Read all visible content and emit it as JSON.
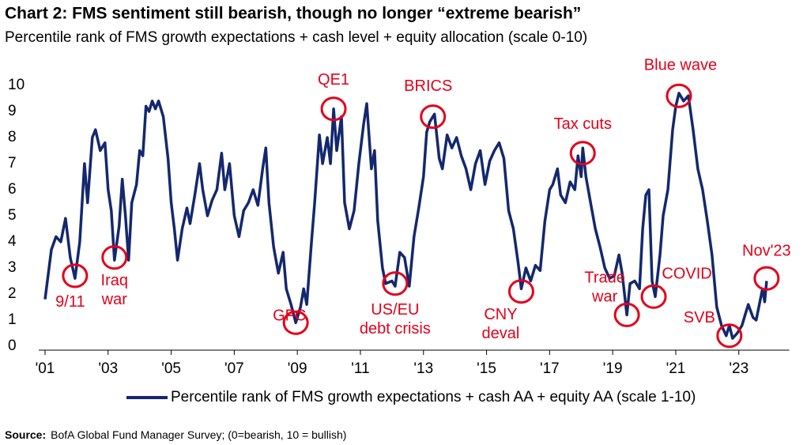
{
  "chart_data": {
    "type": "line",
    "title": "Chart 2: FMS sentiment still bearish, though no longer “extreme bearish”",
    "subtitle": "Percentile rank of FMS growth expectations + cash level + equity allocation (scale 0-10)",
    "source_label": "Source:",
    "source": "BofA Global Fund Manager Survey; (0=bearish, 10 = bullish)",
    "xlim": [
      2000.8,
      2024.6
    ],
    "xticks": [
      {
        "value": 2001,
        "label": "'01"
      },
      {
        "value": 2003,
        "label": "'03"
      },
      {
        "value": 2005,
        "label": "'05"
      },
      {
        "value": 2007,
        "label": "'07"
      },
      {
        "value": 2009,
        "label": "'09"
      },
      {
        "value": 2011,
        "label": "'11"
      },
      {
        "value": 2013,
        "label": "'13"
      },
      {
        "value": 2015,
        "label": "'15"
      },
      {
        "value": 2017,
        "label": "'17"
      },
      {
        "value": 2019,
        "label": "'19"
      },
      {
        "value": 2021,
        "label": "'21"
      },
      {
        "value": 2023,
        "label": "'23"
      }
    ],
    "ylim": [
      0,
      10
    ],
    "yticks": [
      0,
      1,
      2,
      3,
      4,
      5,
      6,
      7,
      8,
      9,
      10
    ],
    "grid": false,
    "legend": "bottom",
    "series": [
      {
        "name": "Percentile rank of FMS growth expectations + cash AA + equity AA (scale 1-10)",
        "color": "#14286e",
        "x": [
          2001.0,
          2001.2,
          2001.35,
          2001.5,
          2001.65,
          2001.8,
          2001.95,
          2002.1,
          2002.25,
          2002.35,
          2002.5,
          2002.6,
          2002.75,
          2002.9,
          2003.0,
          2003.1,
          2003.2,
          2003.35,
          2003.45,
          2003.55,
          2003.65,
          2003.75,
          2003.9,
          2004.0,
          2004.1,
          2004.2,
          2004.3,
          2004.4,
          2004.5,
          2004.6,
          2004.75,
          2004.9,
          2005.0,
          2005.1,
          2005.2,
          2005.35,
          2005.5,
          2005.6,
          2005.75,
          2005.9,
          2006.0,
          2006.15,
          2006.3,
          2006.45,
          2006.6,
          2006.7,
          2006.85,
          2007.0,
          2007.15,
          2007.3,
          2007.45,
          2007.6,
          2007.75,
          2007.9,
          2008.0,
          2008.1,
          2008.25,
          2008.4,
          2008.55,
          2008.65,
          2008.8,
          2008.95,
          2009.1,
          2009.2,
          2009.3,
          2009.45,
          2009.55,
          2009.7,
          2009.8,
          2009.95,
          2010.05,
          2010.15,
          2010.25,
          2010.4,
          2010.5,
          2010.65,
          2010.8,
          2010.95,
          2011.1,
          2011.2,
          2011.35,
          2011.45,
          2011.55,
          2011.7,
          2011.8,
          2012.0,
          2012.1,
          2012.25,
          2012.4,
          2012.55,
          2012.7,
          2012.85,
          2013.0,
          2013.1,
          2013.2,
          2013.35,
          2013.5,
          2013.6,
          2013.75,
          2013.9,
          2014.05,
          2014.2,
          2014.35,
          2014.5,
          2014.65,
          2014.8,
          2014.95,
          2015.1,
          2015.25,
          2015.4,
          2015.55,
          2015.7,
          2015.85,
          2016.0,
          2016.1,
          2016.25,
          2016.4,
          2016.55,
          2016.7,
          2016.85,
          2017.0,
          2017.1,
          2017.25,
          2017.35,
          2017.5,
          2017.65,
          2017.8,
          2017.9,
          2018.0,
          2018.05,
          2018.15,
          2018.3,
          2018.45,
          2018.6,
          2018.75,
          2018.9,
          2019.05,
          2019.2,
          2019.3,
          2019.45,
          2019.55,
          2019.7,
          2019.85,
          2019.95,
          2020.05,
          2020.15,
          2020.25,
          2020.35,
          2020.5,
          2020.6,
          2020.75,
          2020.9,
          2021.0,
          2021.1,
          2021.25,
          2021.4,
          2021.55,
          2021.7,
          2021.85,
          2022.0,
          2022.15,
          2022.3,
          2022.45,
          2022.6,
          2022.7,
          2022.8,
          2022.95,
          2023.1,
          2023.2,
          2023.3,
          2023.45,
          2023.55,
          2023.65,
          2023.75,
          2023.82,
          2023.88
        ],
        "values": [
          1.8,
          3.7,
          4.2,
          4.0,
          4.9,
          3.4,
          2.6,
          4.0,
          7.0,
          5.5,
          8.0,
          8.3,
          7.5,
          7.8,
          6.0,
          5.2,
          3.3,
          4.6,
          6.4,
          5.0,
          3.3,
          5.5,
          6.2,
          7.5,
          7.3,
          9.2,
          9.0,
          9.4,
          9.1,
          9.4,
          8.8,
          7.2,
          5.5,
          4.5,
          3.3,
          4.5,
          5.3,
          4.7,
          5.8,
          7.0,
          6.0,
          5.0,
          5.6,
          6.0,
          7.4,
          6.0,
          7.0,
          5.0,
          4.2,
          5.2,
          5.5,
          6.0,
          5.4,
          6.8,
          7.6,
          5.5,
          3.8,
          2.8,
          3.6,
          2.2,
          1.6,
          0.9,
          1.5,
          2.2,
          1.6,
          4.0,
          5.5,
          8.1,
          7.0,
          8.0,
          7.0,
          9.1,
          7.5,
          8.8,
          5.5,
          4.5,
          5.2,
          7.0,
          8.5,
          9.3,
          6.8,
          7.5,
          4.8,
          3.0,
          2.4,
          2.5,
          2.3,
          3.6,
          3.4,
          2.3,
          4.2,
          5.3,
          6.5,
          8.2,
          8.6,
          8.9,
          7.2,
          6.8,
          8.1,
          7.6,
          8.0,
          7.3,
          6.8,
          6.0,
          7.0,
          7.5,
          6.2,
          7.1,
          7.5,
          7.8,
          7.2,
          5.2,
          4.5,
          3.2,
          2.2,
          3.0,
          2.5,
          3.1,
          2.9,
          4.8,
          6.0,
          6.2,
          6.8,
          5.8,
          5.5,
          6.3,
          6.0,
          7.3,
          6.5,
          7.6,
          6.5,
          5.5,
          4.5,
          3.8,
          3.0,
          2.6,
          2.7,
          3.5,
          2.8,
          1.2,
          2.4,
          2.5,
          2.2,
          4.5,
          5.8,
          6.0,
          2.5,
          1.9,
          3.5,
          5.0,
          6.0,
          8.3,
          9.2,
          9.7,
          9.4,
          9.6,
          8.3,
          6.8,
          6.0,
          4.8,
          3.5,
          1.5,
          0.8,
          0.4,
          0.8,
          0.3,
          0.5,
          0.8,
          1.2,
          1.6,
          1.1,
          1.0,
          1.6,
          2.2,
          1.7,
          2.5
        ]
      }
    ],
    "annotations": [
      {
        "lines": [
          "9/11"
        ],
        "x": 2001.95,
        "y": 2.7
      },
      {
        "lines": [
          "Iraq",
          "war"
        ],
        "x": 2003.2,
        "y": 3.4
      },
      {
        "lines": [
          "GFC"
        ],
        "x": 2008.95,
        "y": 0.9
      },
      {
        "lines": [
          "QE1"
        ],
        "x": 2010.15,
        "y": 9.1
      },
      {
        "lines": [
          "US/EU",
          "debt crisis"
        ],
        "x": 2012.1,
        "y": 2.4
      },
      {
        "lines": [
          "BRICS"
        ],
        "x": 2013.3,
        "y": 8.8
      },
      {
        "lines": [
          "CNY",
          "deval"
        ],
        "x": 2016.1,
        "y": 2.1
      },
      {
        "lines": [
          "Tax cuts"
        ],
        "x": 2018.05,
        "y": 7.4
      },
      {
        "lines": [
          "Trade",
          "war"
        ],
        "x": 2019.45,
        "y": 1.2
      },
      {
        "lines": [
          "COVID"
        ],
        "x": 2020.3,
        "y": 1.9
      },
      {
        "lines": [
          "Blue wave"
        ],
        "x": 2021.1,
        "y": 9.6
      },
      {
        "lines": [
          "SVB"
        ],
        "x": 2022.7,
        "y": 0.4
      },
      {
        "lines": [
          "Nov'23"
        ],
        "x": 2023.88,
        "y": 2.6
      }
    ]
  }
}
